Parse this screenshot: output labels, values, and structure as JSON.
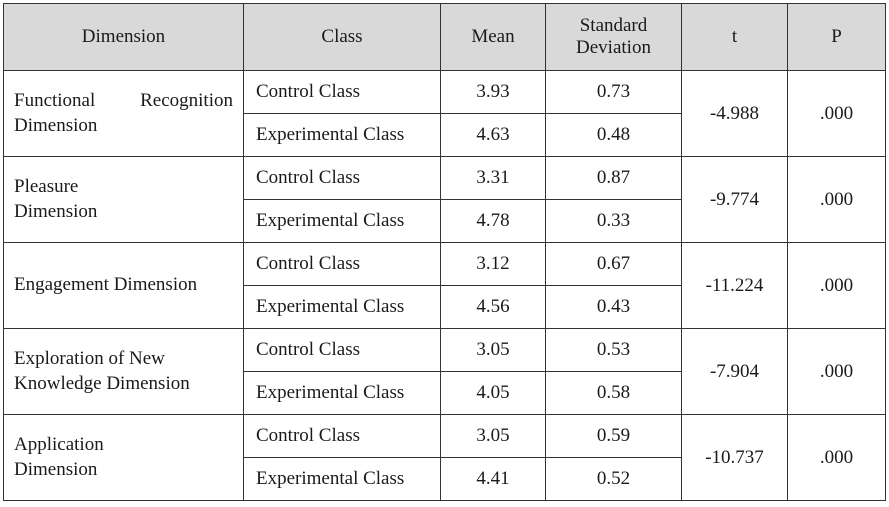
{
  "headers": {
    "dimension": "Dimension",
    "class": "Class",
    "mean": "Mean",
    "sd_line1": "Standard",
    "sd_line2": "Deviation",
    "t": "t",
    "p": "P"
  },
  "rows": [
    {
      "dimension_line1": "Functional Recognition",
      "dimension_line2": "Dimension",
      "control": {
        "class": "Control Class",
        "mean": "3.93",
        "sd": "0.73"
      },
      "experimental": {
        "class": "Experimental Class",
        "mean": "4.63",
        "sd": "0.48"
      },
      "t": "-4.988",
      "p": ".000"
    },
    {
      "dimension_line1": "Pleasure",
      "dimension_line2": "Dimension",
      "control": {
        "class": "Control Class",
        "mean": "3.31",
        "sd": "0.87"
      },
      "experimental": {
        "class": "Experimental Class",
        "mean": "4.78",
        "sd": "0.33"
      },
      "t": "-9.774",
      "p": ".000"
    },
    {
      "dimension_line1": "Engagement Dimension",
      "dimension_line2": "",
      "control": {
        "class": "Control Class",
        "mean": "3.12",
        "sd": "0.67"
      },
      "experimental": {
        "class": "Experimental Class",
        "mean": "4.56",
        "sd": "0.43"
      },
      "t": "-11.224",
      "p": ".000"
    },
    {
      "dimension_line1": "Exploration of New",
      "dimension_line2": "Knowledge Dimension",
      "control": {
        "class": "Control Class",
        "mean": "3.05",
        "sd": "0.53"
      },
      "experimental": {
        "class": "Experimental Class",
        "mean": "4.05",
        "sd": "0.58"
      },
      "t": "-7.904",
      "p": ".000"
    },
    {
      "dimension_line1": "Application",
      "dimension_line2": "Dimension",
      "control": {
        "class": "Control Class",
        "mean": "3.05",
        "sd": "0.59"
      },
      "experimental": {
        "class": "Experimental Class",
        "mean": "4.41",
        "sd": "0.52"
      },
      "t": "-10.737",
      "p": ".000"
    }
  ]
}
